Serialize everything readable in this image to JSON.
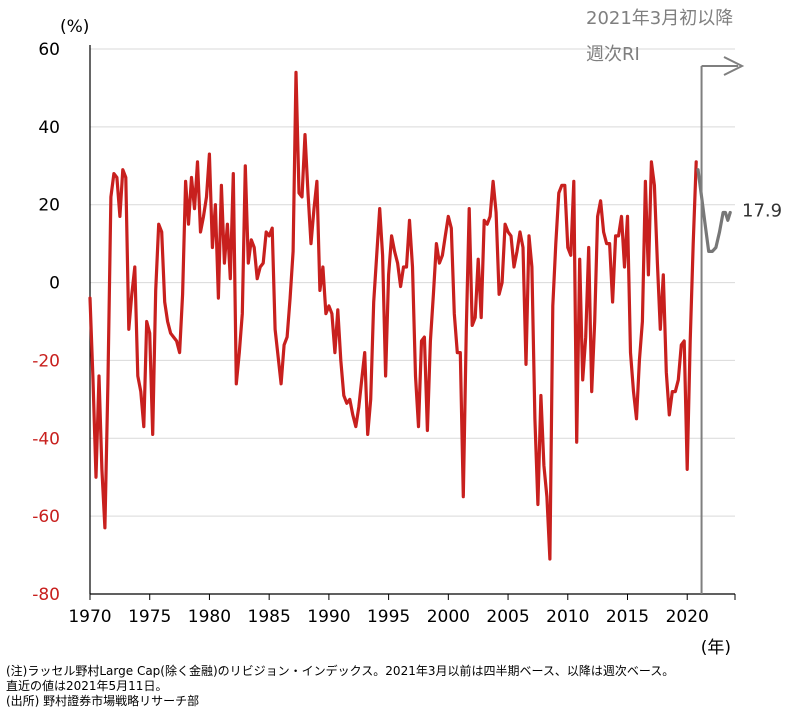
{
  "chart_data": {
    "type": "line",
    "y_unit_label": "(%)",
    "x_unit_label": "(年)",
    "xlim": [
      1970,
      2024
    ],
    "ylim": [
      -80,
      60
    ],
    "y_ticks": [
      {
        "value": 60,
        "label": "60"
      },
      {
        "value": 40,
        "label": "40"
      },
      {
        "value": 20,
        "label": "20"
      },
      {
        "value": 0,
        "label": "0"
      },
      {
        "value": -20,
        "label": "-20"
      },
      {
        "value": -40,
        "label": "-40"
      },
      {
        "value": -60,
        "label": "-60"
      },
      {
        "value": -80,
        "label": "-80"
      }
    ],
    "x_ticks": [
      {
        "value": 1970,
        "label": "1970"
      },
      {
        "value": 1975,
        "label": "1975"
      },
      {
        "value": 1980,
        "label": "1980"
      },
      {
        "value": 1985,
        "label": "1985"
      },
      {
        "value": 1990,
        "label": "1990"
      },
      {
        "value": 1995,
        "label": "1995"
      },
      {
        "value": 2000,
        "label": "2000"
      },
      {
        "value": 2005,
        "label": "2005"
      },
      {
        "value": 2010,
        "label": "2010"
      },
      {
        "value": 2015,
        "label": "2015"
      },
      {
        "value": 2020,
        "label": "2020"
      }
    ],
    "grid": "horizontal",
    "colors": {
      "quarterly": "#c8201e",
      "weekly": "#777777",
      "grid": "#d9d9d9",
      "negative_tick": "#c8201e",
      "positive_tick": "#000000"
    },
    "series": [
      {
        "key": "quarterly",
        "points": [
          [
            1970.0,
            -4
          ],
          [
            1970.25,
            -25
          ],
          [
            1970.5,
            -50
          ],
          [
            1970.75,
            -24
          ],
          [
            1971.0,
            -48
          ],
          [
            1971.25,
            -63
          ],
          [
            1971.5,
            -26
          ],
          [
            1971.75,
            22
          ],
          [
            1972.0,
            28
          ],
          [
            1972.25,
            27
          ],
          [
            1972.5,
            17
          ],
          [
            1972.75,
            29
          ],
          [
            1973.0,
            27
          ],
          [
            1973.25,
            -12
          ],
          [
            1973.5,
            -3
          ],
          [
            1973.75,
            4
          ],
          [
            1974.0,
            -24
          ],
          [
            1974.25,
            -28
          ],
          [
            1974.5,
            -37
          ],
          [
            1974.75,
            -10
          ],
          [
            1975.0,
            -13
          ],
          [
            1975.25,
            -39
          ],
          [
            1975.5,
            -2
          ],
          [
            1975.75,
            15
          ],
          [
            1976.0,
            13
          ],
          [
            1976.25,
            -5
          ],
          [
            1976.5,
            -10
          ],
          [
            1976.75,
            -13
          ],
          [
            1977.0,
            -14
          ],
          [
            1977.25,
            -15
          ],
          [
            1977.5,
            -18
          ],
          [
            1977.75,
            -3
          ],
          [
            1978.0,
            26
          ],
          [
            1978.25,
            15
          ],
          [
            1978.5,
            27
          ],
          [
            1978.75,
            19
          ],
          [
            1979.0,
            31
          ],
          [
            1979.25,
            13
          ],
          [
            1979.5,
            17
          ],
          [
            1979.75,
            22
          ],
          [
            1980.0,
            33
          ],
          [
            1980.25,
            9
          ],
          [
            1980.5,
            20
          ],
          [
            1980.75,
            -4
          ],
          [
            1981.0,
            25
          ],
          [
            1981.25,
            5
          ],
          [
            1981.5,
            15
          ],
          [
            1981.75,
            1
          ],
          [
            1982.0,
            28
          ],
          [
            1982.25,
            -26
          ],
          [
            1982.5,
            -18
          ],
          [
            1982.75,
            -8
          ],
          [
            1983.0,
            30
          ],
          [
            1983.25,
            5
          ],
          [
            1983.5,
            11
          ],
          [
            1983.75,
            9
          ],
          [
            1984.0,
            1
          ],
          [
            1984.25,
            4
          ],
          [
            1984.5,
            5
          ],
          [
            1984.75,
            13
          ],
          [
            1985.0,
            12
          ],
          [
            1985.25,
            14
          ],
          [
            1985.5,
            -12
          ],
          [
            1985.75,
            -19
          ],
          [
            1986.0,
            -26
          ],
          [
            1986.25,
            -16
          ],
          [
            1986.5,
            -14
          ],
          [
            1986.75,
            -4
          ],
          [
            1987.0,
            8
          ],
          [
            1987.25,
            54
          ],
          [
            1987.5,
            23
          ],
          [
            1987.75,
            22
          ],
          [
            1988.0,
            38
          ],
          [
            1988.25,
            23
          ],
          [
            1988.5,
            10
          ],
          [
            1988.75,
            19
          ],
          [
            1989.0,
            26
          ],
          [
            1989.25,
            -2
          ],
          [
            1989.5,
            4
          ],
          [
            1989.75,
            -8
          ],
          [
            1990.0,
            -6
          ],
          [
            1990.25,
            -8
          ],
          [
            1990.5,
            -18
          ],
          [
            1990.75,
            -7
          ],
          [
            1991.0,
            -20
          ],
          [
            1991.25,
            -29
          ],
          [
            1991.5,
            -31
          ],
          [
            1991.75,
            -30
          ],
          [
            1992.0,
            -34
          ],
          [
            1992.25,
            -37
          ],
          [
            1992.5,
            -32
          ],
          [
            1992.75,
            -25
          ],
          [
            1993.0,
            -18
          ],
          [
            1993.25,
            -39
          ],
          [
            1993.5,
            -30
          ],
          [
            1993.75,
            -5
          ],
          [
            1994.0,
            7
          ],
          [
            1994.25,
            19
          ],
          [
            1994.5,
            7
          ],
          [
            1994.75,
            -24
          ],
          [
            1995.0,
            2
          ],
          [
            1995.25,
            12
          ],
          [
            1995.5,
            8
          ],
          [
            1995.75,
            5
          ],
          [
            1996.0,
            -1
          ],
          [
            1996.25,
            4
          ],
          [
            1996.5,
            4
          ],
          [
            1996.75,
            16
          ],
          [
            1997.0,
            4
          ],
          [
            1997.25,
            -24
          ],
          [
            1997.5,
            -37
          ],
          [
            1997.75,
            -15
          ],
          [
            1998.0,
            -14
          ],
          [
            1998.25,
            -38
          ],
          [
            1998.5,
            -15
          ],
          [
            1998.75,
            -3
          ],
          [
            1999.0,
            10
          ],
          [
            1999.25,
            5
          ],
          [
            1999.5,
            7
          ],
          [
            1999.75,
            12
          ],
          [
            2000.0,
            17
          ],
          [
            2000.25,
            14
          ],
          [
            2000.5,
            -8
          ],
          [
            2000.75,
            -18
          ],
          [
            2001.0,
            -18
          ],
          [
            2001.25,
            -55
          ],
          [
            2001.5,
            -12
          ],
          [
            2001.75,
            19
          ],
          [
            2002.0,
            -11
          ],
          [
            2002.25,
            -9
          ],
          [
            2002.5,
            6
          ],
          [
            2002.75,
            -9
          ],
          [
            2003.0,
            16
          ],
          [
            2003.25,
            15
          ],
          [
            2003.5,
            17
          ],
          [
            2003.75,
            26
          ],
          [
            2004.0,
            18
          ],
          [
            2004.25,
            -3
          ],
          [
            2004.5,
            0
          ],
          [
            2004.75,
            15
          ],
          [
            2005.0,
            13
          ],
          [
            2005.25,
            12
          ],
          [
            2005.5,
            4
          ],
          [
            2005.75,
            8
          ],
          [
            2006.0,
            13
          ],
          [
            2006.25,
            9
          ],
          [
            2006.5,
            -21
          ],
          [
            2006.75,
            12
          ],
          [
            2007.0,
            4
          ],
          [
            2007.25,
            -35
          ],
          [
            2007.5,
            -57
          ],
          [
            2007.75,
            -29
          ],
          [
            2008.0,
            -47
          ],
          [
            2008.25,
            -55
          ],
          [
            2008.5,
            -71
          ],
          [
            2008.75,
            -6
          ],
          [
            2009.0,
            10
          ],
          [
            2009.25,
            23
          ],
          [
            2009.5,
            25
          ],
          [
            2009.75,
            25
          ],
          [
            2010.0,
            9
          ],
          [
            2010.25,
            7
          ],
          [
            2010.5,
            26
          ],
          [
            2010.75,
            -41
          ],
          [
            2011.0,
            6
          ],
          [
            2011.25,
            -25
          ],
          [
            2011.5,
            -14
          ],
          [
            2011.75,
            9
          ],
          [
            2012.0,
            -28
          ],
          [
            2012.25,
            -10
          ],
          [
            2012.5,
            17
          ],
          [
            2012.75,
            21
          ],
          [
            2013.0,
            13
          ],
          [
            2013.25,
            10
          ],
          [
            2013.5,
            10
          ],
          [
            2013.75,
            -5
          ],
          [
            2014.0,
            12
          ],
          [
            2014.25,
            12
          ],
          [
            2014.5,
            17
          ],
          [
            2014.75,
            4
          ],
          [
            2015.0,
            17
          ],
          [
            2015.25,
            -18
          ],
          [
            2015.5,
            -28
          ],
          [
            2015.75,
            -35
          ],
          [
            2016.0,
            -20
          ],
          [
            2016.25,
            -10
          ],
          [
            2016.5,
            26
          ],
          [
            2016.75,
            2
          ],
          [
            2017.0,
            31
          ],
          [
            2017.25,
            25
          ],
          [
            2017.5,
            5
          ],
          [
            2017.75,
            -12
          ],
          [
            2018.0,
            2
          ],
          [
            2018.25,
            -23
          ],
          [
            2018.5,
            -34
          ],
          [
            2018.75,
            -28
          ],
          [
            2019.0,
            -28
          ],
          [
            2019.25,
            -25
          ],
          [
            2019.5,
            -16
          ],
          [
            2019.75,
            -15
          ],
          [
            2020.0,
            -48
          ],
          [
            2020.25,
            -15
          ],
          [
            2020.5,
            10
          ],
          [
            2020.75,
            31
          ]
        ]
      },
      {
        "key": "weekly",
        "points": [
          [
            2020.9,
            29
          ],
          [
            2021.2,
            22
          ],
          [
            2021.5,
            15
          ],
          [
            2021.8,
            8
          ],
          [
            2022.1,
            8
          ],
          [
            2022.4,
            9
          ],
          [
            2022.7,
            13
          ],
          [
            2023.0,
            18
          ],
          [
            2023.2,
            18
          ],
          [
            2023.4,
            16
          ],
          [
            2023.6,
            18
          ]
        ]
      }
    ],
    "latest_value_label": "17.9",
    "marker": {
      "x": 2021.2,
      "label_line1": "2021年3月初以降",
      "label_line2": "週次RI"
    }
  },
  "notes": {
    "note1": "(注)ラッセル野村Large Cap(除く金融)のリビジョン・インデックス。2021年3月以前は四半期ベース、以降は週次ベース。",
    "note2": "直近の値は2021年5月11日。",
    "source": "(出所) 野村證券市場戦略リサーチ部"
  }
}
